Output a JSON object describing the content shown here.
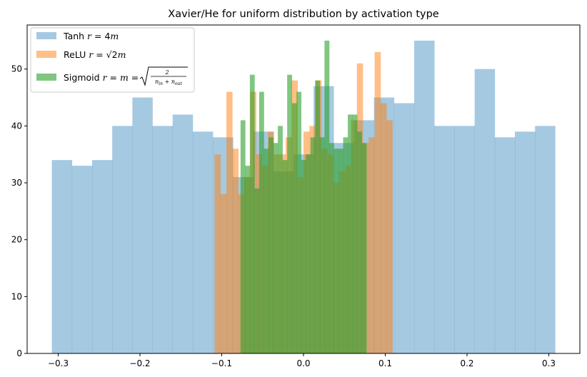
{
  "chart_data": {
    "type": "bar",
    "title": "Xavier/He for uniform distribution by activation type",
    "xlabel": "",
    "ylabel": "",
    "xlim": [
      -0.338,
      0.338
    ],
    "ylim": [
      0,
      57.75
    ],
    "xticks": [
      -0.3,
      -0.2,
      -0.1,
      0.0,
      0.1,
      0.2,
      0.3
    ],
    "xtick_labels": [
      "−0.3",
      "−0.2",
      "−0.1",
      "0.0",
      "0.1",
      "0.2",
      "0.3"
    ],
    "yticks": [
      0,
      10,
      20,
      30,
      40,
      50
    ],
    "ytick_labels": [
      "0",
      "10",
      "20",
      "30",
      "40",
      "50"
    ],
    "grid": false,
    "legend_position": "top-left",
    "series": [
      {
        "name": "Tanh r = 4m",
        "legend_parts": [
          "Tanh ",
          "r",
          " = 4",
          "m"
        ],
        "color": "#1f77b4",
        "alpha": 0.4,
        "bin_start": -0.3078,
        "bin_end": 0.3078,
        "values": [
          34,
          33,
          34,
          40,
          45,
          40,
          42,
          39,
          38,
          31,
          39,
          32,
          35,
          47,
          37,
          41,
          45,
          44,
          55,
          40,
          40,
          50,
          38,
          39,
          40
        ]
      },
      {
        "name": "ReLU r = √2 m",
        "legend_parts": [
          "ReLU ",
          "r",
          " = √2",
          "m"
        ],
        "color": "#ff7f0e",
        "alpha": 0.5,
        "bin_start": -0.1088,
        "bin_end": 0.1088,
        "values": [
          35,
          28,
          46,
          36,
          28,
          31,
          46,
          35,
          33,
          39,
          35,
          35,
          38,
          48,
          31,
          39,
          40,
          48,
          36,
          35,
          30,
          32,
          33,
          41,
          51,
          37,
          38,
          53,
          44,
          41
        ]
      },
      {
        "name": "Sigmoid r = m = sqrt(2/(n_in + n_out))",
        "legend_parts": [
          "Sigmoid ",
          "r",
          " = ",
          "m",
          " = ",
          "2",
          "n",
          "in",
          " + ",
          "n",
          "out"
        ],
        "color": "#2ca02c",
        "alpha": 0.6,
        "bin_start": -0.077,
        "bin_end": 0.077,
        "values": [
          41,
          33,
          49,
          29,
          46,
          36,
          38,
          37,
          40,
          34,
          49,
          44,
          46,
          34,
          35,
          38,
          48,
          38,
          55,
          37,
          36,
          36,
          38,
          42,
          42,
          39,
          37
        ]
      }
    ]
  }
}
